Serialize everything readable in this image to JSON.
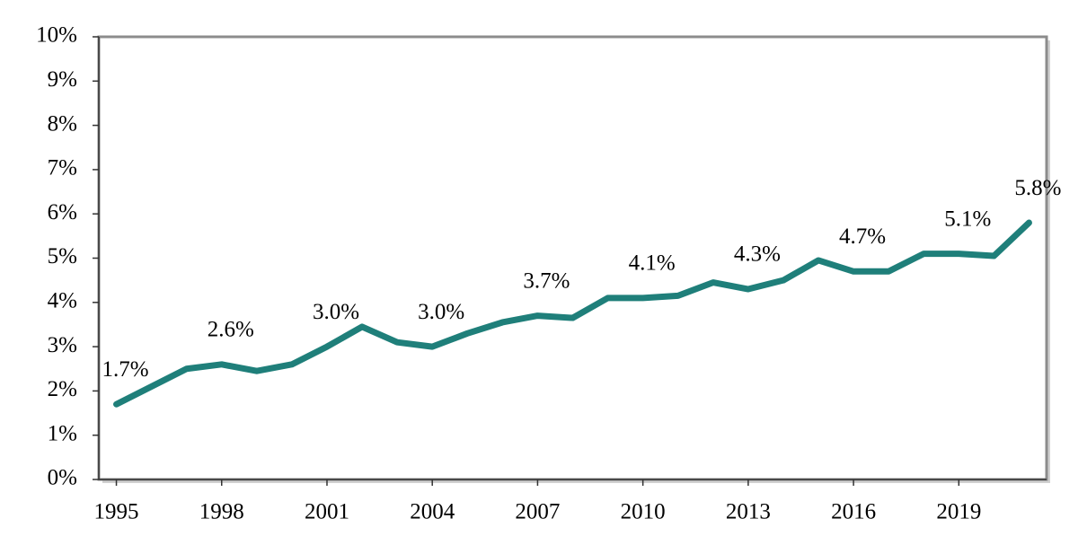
{
  "chart_data": {
    "type": "line",
    "x": [
      1995,
      1996,
      1997,
      1998,
      1999,
      2000,
      2001,
      2002,
      2003,
      2004,
      2005,
      2006,
      2007,
      2008,
      2009,
      2010,
      2011,
      2012,
      2013,
      2014,
      2015,
      2016,
      2017,
      2018,
      2019,
      2020,
      2021
    ],
    "values": [
      1.7,
      2.1,
      2.5,
      2.6,
      2.45,
      2.6,
      3.0,
      3.45,
      3.1,
      3.0,
      3.3,
      3.55,
      3.7,
      3.65,
      4.1,
      4.1,
      4.15,
      4.45,
      4.3,
      4.5,
      4.95,
      4.7,
      4.7,
      5.1,
      5.1,
      5.05,
      5.8
    ],
    "value_labels": [
      "1.7%",
      null,
      null,
      "2.6%",
      null,
      null,
      "3.0%",
      null,
      null,
      "3.0%",
      null,
      null,
      "3.7%",
      null,
      null,
      "4.1%",
      null,
      null,
      "4.3%",
      null,
      null,
      "4.7%",
      null,
      null,
      "5.1%",
      null,
      "5.8%"
    ],
    "color": "#1f7f7a",
    "xlim": [
      1994.5,
      2021.5
    ],
    "xticks": [
      1995,
      1998,
      2001,
      2004,
      2007,
      2010,
      2013,
      2016,
      2019
    ],
    "ylim": [
      0,
      10
    ],
    "yticks": [
      {
        "value": 0,
        "label": "0%"
      },
      {
        "value": 1,
        "label": "1%"
      },
      {
        "value": 2,
        "label": "2%"
      },
      {
        "value": 3,
        "label": "3%"
      },
      {
        "value": 4,
        "label": "4%"
      },
      {
        "value": 5,
        "label": "5%"
      },
      {
        "value": 6,
        "label": "6%"
      },
      {
        "value": 7,
        "label": "7%"
      },
      {
        "value": 8,
        "label": "8%"
      },
      {
        "value": 9,
        "label": "9%"
      },
      {
        "value": 10,
        "label": "10%"
      }
    ]
  }
}
